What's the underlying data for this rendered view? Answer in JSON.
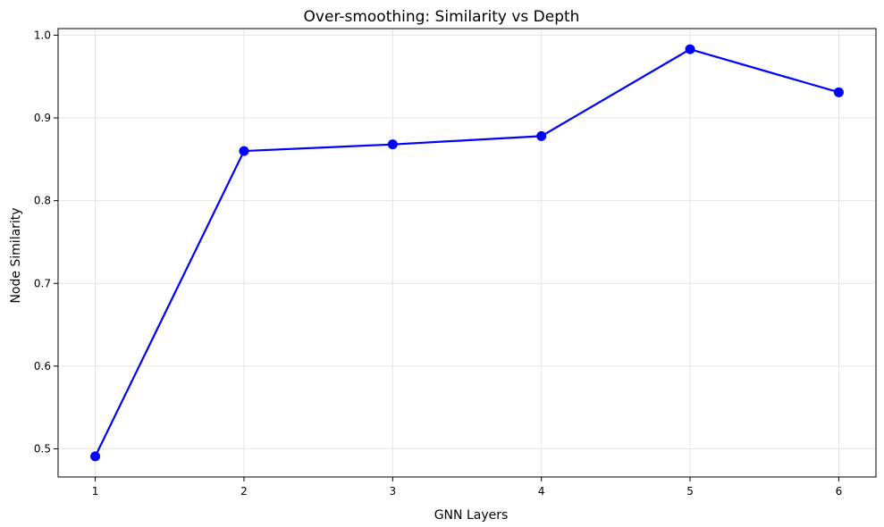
{
  "chart_data": {
    "type": "line",
    "title": "Over-smoothing: Similarity vs Depth",
    "xlabel": "GNN Layers",
    "ylabel": "Node Similarity",
    "x": [
      1,
      2,
      3,
      4,
      5,
      6
    ],
    "series": [
      {
        "values": [
          0.491,
          0.86,
          0.868,
          0.878,
          0.983,
          0.931
        ],
        "color": "#0000ff",
        "marker": "circle"
      }
    ],
    "xticks": [
      1,
      2,
      3,
      4,
      5,
      6
    ],
    "yticks": [
      0.5,
      0.6,
      0.7,
      0.8,
      0.9,
      1.0
    ],
    "ytick_labels": [
      "0.5",
      "0.6",
      "0.7",
      "0.8",
      "0.9",
      "1.0"
    ],
    "xlim": [
      0.75,
      6.25
    ],
    "ylim": [
      0.466,
      1.008
    ],
    "grid": true
  }
}
